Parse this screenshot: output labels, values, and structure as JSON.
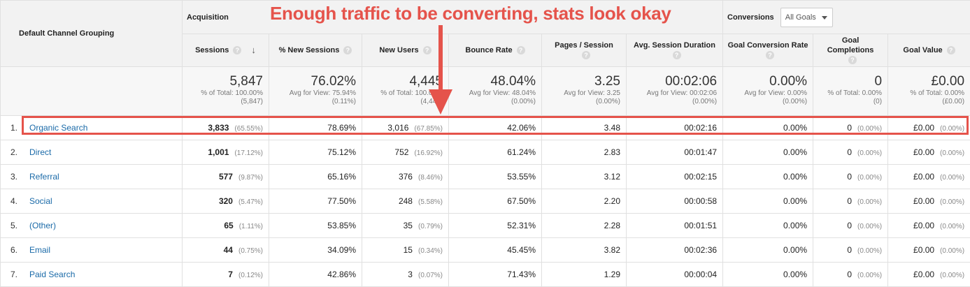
{
  "annotation": "Enough traffic to be converting, stats look okay",
  "header": {
    "channel_grouping": "Default Channel Grouping",
    "acquisition": "Acquisition",
    "conversions": "Conversions",
    "goal_select": "All Goals",
    "help_glyph": "?",
    "sort_glyph": "↓",
    "columns": {
      "sessions": "Sessions",
      "new_sessions_pct": "% New Sessions",
      "new_users": "New Users",
      "bounce_rate": "Bounce Rate",
      "pages_session": "Pages / Session",
      "avg_duration": "Avg. Session Duration",
      "goal_conv_rate": "Goal Conversion Rate",
      "goal_completions": "Goal Completions",
      "goal_value": "Goal Value"
    }
  },
  "totals": {
    "sessions": {
      "value": "5,847",
      "sub1": "% of Total: 100.00%",
      "sub2": "(5,847)"
    },
    "new_sessions_pct": {
      "value": "76.02%",
      "sub1": "Avg for View: 75.94%",
      "sub2": "(0.11%)"
    },
    "new_users": {
      "value": "4,445",
      "sub1": "% of Total: 100.07%",
      "sub2": "(4,442)"
    },
    "bounce_rate": {
      "value": "48.04%",
      "sub1": "Avg for View: 48.04%",
      "sub2": "(0.00%)"
    },
    "pages_session": {
      "value": "3.25",
      "sub1": "Avg for View: 3.25",
      "sub2": "(0.00%)"
    },
    "avg_duration": {
      "value": "00:02:06",
      "sub1": "Avg for View: 00:02:06",
      "sub2": "(0.00%)"
    },
    "goal_conv_rate": {
      "value": "0.00%",
      "sub1": "Avg for View: 0.00%",
      "sub2": "(0.00%)"
    },
    "goal_completions": {
      "value": "0",
      "sub1": "% of Total: 0.00%",
      "sub2": "(0)"
    },
    "goal_value": {
      "value": "£0.00",
      "sub1": "% of Total: 0.00%",
      "sub2": "(£0.00)"
    }
  },
  "rows": [
    {
      "idx": "1.",
      "channel": "Organic Search",
      "sessions": "3,833",
      "sessions_pct": "(65.55%)",
      "new_sessions_pct": "78.69%",
      "new_users": "3,016",
      "new_users_pct": "(67.85%)",
      "bounce_rate": "42.06%",
      "pages_session": "3.48",
      "avg_duration": "00:02:16",
      "goal_conv_rate": "0.00%",
      "goal_completions": "0",
      "goal_completions_pct": "(0.00%)",
      "goal_value": "£0.00",
      "goal_value_pct": "(0.00%)"
    },
    {
      "idx": "2.",
      "channel": "Direct",
      "sessions": "1,001",
      "sessions_pct": "(17.12%)",
      "new_sessions_pct": "75.12%",
      "new_users": "752",
      "new_users_pct": "(16.92%)",
      "bounce_rate": "61.24%",
      "pages_session": "2.83",
      "avg_duration": "00:01:47",
      "goal_conv_rate": "0.00%",
      "goal_completions": "0",
      "goal_completions_pct": "(0.00%)",
      "goal_value": "£0.00",
      "goal_value_pct": "(0.00%)"
    },
    {
      "idx": "3.",
      "channel": "Referral",
      "sessions": "577",
      "sessions_pct": "(9.87%)",
      "new_sessions_pct": "65.16%",
      "new_users": "376",
      "new_users_pct": "(8.46%)",
      "bounce_rate": "53.55%",
      "pages_session": "3.12",
      "avg_duration": "00:02:15",
      "goal_conv_rate": "0.00%",
      "goal_completions": "0",
      "goal_completions_pct": "(0.00%)",
      "goal_value": "£0.00",
      "goal_value_pct": "(0.00%)"
    },
    {
      "idx": "4.",
      "channel": "Social",
      "sessions": "320",
      "sessions_pct": "(5.47%)",
      "new_sessions_pct": "77.50%",
      "new_users": "248",
      "new_users_pct": "(5.58%)",
      "bounce_rate": "67.50%",
      "pages_session": "2.20",
      "avg_duration": "00:00:58",
      "goal_conv_rate": "0.00%",
      "goal_completions": "0",
      "goal_completions_pct": "(0.00%)",
      "goal_value": "£0.00",
      "goal_value_pct": "(0.00%)"
    },
    {
      "idx": "5.",
      "channel": "(Other)",
      "sessions": "65",
      "sessions_pct": "(1.11%)",
      "new_sessions_pct": "53.85%",
      "new_users": "35",
      "new_users_pct": "(0.79%)",
      "bounce_rate": "52.31%",
      "pages_session": "2.28",
      "avg_duration": "00:01:51",
      "goal_conv_rate": "0.00%",
      "goal_completions": "0",
      "goal_completions_pct": "(0.00%)",
      "goal_value": "£0.00",
      "goal_value_pct": "(0.00%)"
    },
    {
      "idx": "6.",
      "channel": "Email",
      "sessions": "44",
      "sessions_pct": "(0.75%)",
      "new_sessions_pct": "34.09%",
      "new_users": "15",
      "new_users_pct": "(0.34%)",
      "bounce_rate": "45.45%",
      "pages_session": "3.82",
      "avg_duration": "00:02:36",
      "goal_conv_rate": "0.00%",
      "goal_completions": "0",
      "goal_completions_pct": "(0.00%)",
      "goal_value": "£0.00",
      "goal_value_pct": "(0.00%)"
    },
    {
      "idx": "7.",
      "channel": "Paid Search",
      "sessions": "7",
      "sessions_pct": "(0.12%)",
      "new_sessions_pct": "42.86%",
      "new_users": "3",
      "new_users_pct": "(0.07%)",
      "bounce_rate": "71.43%",
      "pages_session": "1.29",
      "avg_duration": "00:00:04",
      "goal_conv_rate": "0.00%",
      "goal_completions": "0",
      "goal_completions_pct": "(0.00%)",
      "goal_value": "£0.00",
      "goal_value_pct": "(0.00%)"
    }
  ],
  "colors": {
    "annotation": "#e5534b",
    "link": "#1a6aa8"
  }
}
